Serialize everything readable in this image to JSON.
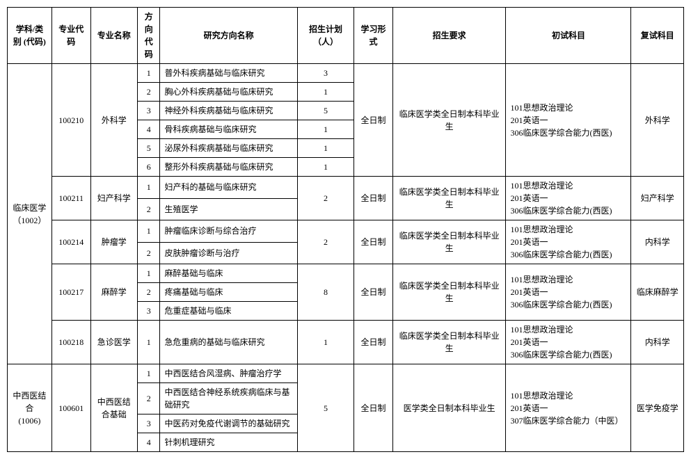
{
  "headers": {
    "discipline": "学科/类别\n(代码)",
    "majorCode": "专业代码",
    "majorName": "专业名称",
    "dirCode": "方向\n代码",
    "dirName": "研究方向名称",
    "plan": "招生计划（人）",
    "studyMode": "学习形式",
    "requirements": "招生要求",
    "prelim": "初试科目",
    "reexam": "复试科目"
  },
  "disciplines": [
    {
      "name": "临床医学\n（1002）",
      "majors": [
        {
          "code": "100210",
          "name": "外科学",
          "plan": "",
          "studyMode": "全日制",
          "requirements": "临床医学类全日制本科毕业生",
          "prelim": "101思想政治理论\n201英语一\n306临床医学综合能力(西医)",
          "reexam": "外科学",
          "directions": [
            {
              "code": "1",
              "name": "普外科疾病基础与临床研究",
              "plan": "3"
            },
            {
              "code": "2",
              "name": "胸心外科疾病基础与临床研究",
              "plan": "1"
            },
            {
              "code": "3",
              "name": "神经外科疾病基础与临床研究",
              "plan": "5"
            },
            {
              "code": "4",
              "name": "骨科疾病基础与临床研究",
              "plan": "1"
            },
            {
              "code": "5",
              "name": "泌尿外科疾病基础与临床研究",
              "plan": "1"
            },
            {
              "code": "6",
              "name": "整形外科疾病基础与临床研究",
              "plan": "1"
            }
          ]
        },
        {
          "code": "100211",
          "name": "妇产科学",
          "plan": "2",
          "studyMode": "全日制",
          "requirements": "临床医学类全日制本科毕业生",
          "prelim": "101思想政治理论\n201英语一\n306临床医学综合能力(西医)",
          "reexam": "妇产科学",
          "directions": [
            {
              "code": "1",
              "name": "妇产科的基础与临床研究"
            },
            {
              "code": "2",
              "name": "生殖医学"
            }
          ]
        },
        {
          "code": "100214",
          "name": "肿瘤学",
          "plan": "2",
          "studyMode": "全日制",
          "requirements": "临床医学类全日制本科毕业生",
          "prelim": "101思想政治理论\n201英语一\n306临床医学综合能力(西医)",
          "reexam": "内科学",
          "directions": [
            {
              "code": "1",
              "name": "肿瘤临床诊断与综合治疗"
            },
            {
              "code": "2",
              "name": "皮肤肿瘤诊断与治疗"
            }
          ]
        },
        {
          "code": "100217",
          "name": "麻醉学",
          "plan": "8",
          "studyMode": "全日制",
          "requirements": "临床医学类全日制本科毕业生",
          "prelim": "101思想政治理论\n201英语一\n306临床医学综合能力(西医)",
          "reexam": "临床麻醉学",
          "directions": [
            {
              "code": "1",
              "name": "麻醉基础与临床"
            },
            {
              "code": "2",
              "name": "疼痛基础与临床"
            },
            {
              "code": "3",
              "name": "危重症基础与临床"
            }
          ]
        },
        {
          "code": "100218",
          "name": "急诊医学",
          "plan": "1",
          "studyMode": "全日制",
          "requirements": "临床医学类全日制本科毕业生",
          "prelim": "101思想政治理论\n201英语一\n306临床医学综合能力(西医)",
          "reexam": "内科学",
          "directions": [
            {
              "code": "1",
              "name": "急危重病的基础与临床研究"
            }
          ]
        }
      ]
    },
    {
      "name": "中西医结合\n(1006)",
      "majors": [
        {
          "code": "100601",
          "name": "中西医结合基础",
          "plan": "5",
          "studyMode": "全日制",
          "requirements": "医学类全日制本科毕业生",
          "prelim": "101思想政治理论\n201英语一\n307临床医学综合能力（中医）",
          "reexam": "医学免疫学",
          "directions": [
            {
              "code": "1",
              "name": "中西医结合风湿病、肿瘤治疗学"
            },
            {
              "code": "2",
              "name": "中西医结合神经系统疾病临床与基础研究"
            },
            {
              "code": "3",
              "name": "中医药对免疫代谢调节的基础研究"
            },
            {
              "code": "4",
              "name": "针刺机理研究"
            }
          ]
        }
      ]
    }
  ]
}
